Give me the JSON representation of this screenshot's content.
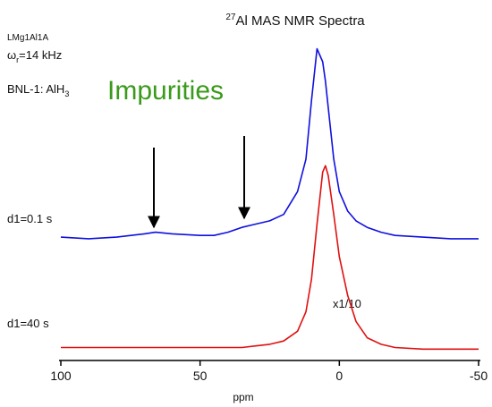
{
  "chart_data": {
    "type": "line",
    "title_superscript": "27",
    "title": "Al MAS NMR Spectra",
    "sample": "LMg1Al1A",
    "spin_symbol": "ω",
    "spin_subscript": "r",
    "spin_rate": "=14 kHz",
    "reference": "BNL-1: AlH",
    "reference_subscript": "3",
    "annotation": "Impurities",
    "scale_note": "x1/10",
    "x_label": "ppm",
    "xlim": [
      100,
      -50
    ],
    "xticks": [
      100,
      50,
      0,
      -50
    ],
    "ylim": [
      0,
      100
    ],
    "x": [
      100,
      90,
      80,
      70,
      66,
      60,
      50,
      45,
      40,
      35,
      30,
      25,
      20,
      15,
      12,
      10,
      8,
      6,
      5,
      4,
      2,
      0,
      -3,
      -6,
      -10,
      -15,
      -20,
      -30,
      -40,
      -50
    ],
    "series": [
      {
        "name": "d1=0.1 s",
        "color": "#1010e0",
        "values": [
          38,
          37.5,
          38,
          39,
          39.5,
          39,
          38.5,
          38.5,
          39.5,
          41,
          42,
          43,
          45,
          52,
          62,
          80,
          96,
          92,
          86,
          78,
          62,
          52,
          46,
          43,
          41,
          39.5,
          38.5,
          38,
          37.5,
          37.5
        ]
      },
      {
        "name": "d1=40 s",
        "color": "#e01010",
        "values": [
          4,
          4,
          4,
          4,
          4,
          4,
          4,
          4,
          4,
          4,
          4.5,
          5,
          6,
          9,
          15,
          25,
          42,
          58,
          60,
          57,
          45,
          32,
          20,
          12,
          7,
          5,
          4,
          3.5,
          3.5,
          3.5
        ]
      }
    ]
  }
}
